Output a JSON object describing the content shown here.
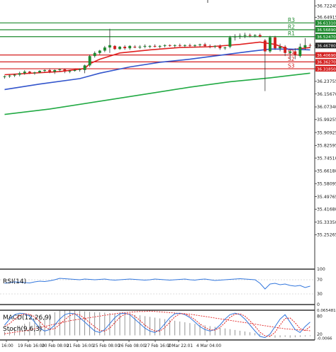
{
  "chart_data": [
    {
      "type": "candlestick",
      "panel": "price",
      "ylim": [
        35.2,
        36.76
      ],
      "y_ticks": [
        "36.72245",
        "36.64915",
        "36.56890",
        "36.52470",
        "36.46780",
        "36.40690",
        "36.36270",
        "36.31850",
        "36.23755",
        "36.15670",
        "36.07340",
        "35.99255",
        "35.90925",
        "35.82595",
        "35.74510",
        "35.66180",
        "35.58095",
        "35.49765",
        "35.41680",
        "35.33350",
        "35.25265"
      ],
      "price_label": "36.46780",
      "x_labels": [
        "16:00",
        "19 Feb 16:00",
        "20 Feb 08:00",
        "21 Feb 16:00",
        "25 Feb 08:00",
        "26 Feb 08:00",
        "27 Feb 16:00",
        "2 Mar 22:01",
        "4 Mar 04:00"
      ],
      "pivot_levels": [
        {
          "name": "R3",
          "value": 36.6131,
          "label": "36.61310"
        },
        {
          "name": "R2",
          "value": 36.5689,
          "label": "36.56890"
        },
        {
          "name": "R1",
          "value": 36.5247,
          "label": "36.52470"
        },
        {
          "name": "S1",
          "value": 36.4069,
          "label": "36.40690"
        },
        {
          "name": "S2",
          "value": 36.3627,
          "label": "36.36270"
        },
        {
          "name": "S3",
          "value": 36.3185,
          "label": "36.31850"
        }
      ],
      "candles": [
        [
          1,
          36.265,
          36.275,
          36.255,
          36.27
        ],
        [
          2,
          36.27,
          36.28,
          36.26,
          36.275
        ],
        [
          3,
          36.275,
          36.285,
          36.265,
          36.28
        ],
        [
          4,
          36.28,
          36.3,
          36.27,
          36.29
        ],
        [
          5,
          36.29,
          36.31,
          36.28,
          36.3
        ],
        [
          6,
          36.3,
          36.305,
          36.285,
          36.29
        ],
        [
          7,
          36.29,
          36.3,
          36.28,
          36.295
        ],
        [
          8,
          36.295,
          36.31,
          36.29,
          36.305
        ],
        [
          9,
          36.305,
          36.315,
          36.295,
          36.31
        ],
        [
          10,
          36.31,
          36.32,
          36.29,
          36.3
        ],
        [
          11,
          36.3,
          36.315,
          36.285,
          36.31
        ],
        [
          12,
          36.31,
          36.32,
          36.3,
          36.315
        ],
        [
          13,
          36.315,
          36.32,
          36.29,
          36.3
        ],
        [
          14,
          36.3,
          36.31,
          36.29,
          36.305
        ],
        [
          15,
          36.305,
          36.315,
          36.3,
          36.31
        ],
        [
          16,
          36.31,
          36.32,
          36.3,
          36.315
        ],
        [
          17,
          36.31,
          36.345,
          36.29,
          36.34
        ],
        [
          18,
          36.34,
          36.41,
          36.33,
          36.4
        ],
        [
          19,
          36.4,
          36.43,
          36.39,
          36.42
        ],
        [
          20,
          36.42,
          36.44,
          36.41,
          36.435
        ],
        [
          21,
          36.435,
          36.465,
          36.425,
          36.455
        ],
        [
          22,
          36.455,
          36.575,
          36.42,
          36.47
        ],
        [
          23,
          36.465,
          36.47,
          36.44,
          36.445
        ],
        [
          24,
          36.445,
          36.465,
          36.44,
          36.46
        ],
        [
          25,
          36.46,
          36.47,
          36.44,
          36.45
        ],
        [
          26,
          36.45,
          36.47,
          36.44,
          36.465
        ],
        [
          27,
          36.46,
          36.47,
          36.45,
          36.455
        ],
        [
          28,
          36.455,
          36.47,
          36.445,
          36.46
        ],
        [
          29,
          36.46,
          36.475,
          36.45,
          36.465
        ],
        [
          30,
          36.46,
          36.47,
          36.45,
          36.465
        ],
        [
          31,
          36.465,
          36.475,
          36.455,
          36.46
        ],
        [
          32,
          36.46,
          36.47,
          36.45,
          36.465
        ],
        [
          33,
          36.465,
          36.475,
          36.455,
          36.47
        ],
        [
          34,
          36.47,
          36.475,
          36.46,
          36.465
        ],
        [
          35,
          36.465,
          36.475,
          36.455,
          36.47
        ],
        [
          36,
          36.47,
          36.48,
          36.46,
          36.465
        ],
        [
          37,
          36.465,
          36.475,
          36.455,
          36.47
        ],
        [
          38,
          36.47,
          36.48,
          36.46,
          36.465
        ],
        [
          39,
          36.465,
          36.475,
          36.455,
          36.47
        ],
        [
          40,
          36.47,
          36.48,
          36.46,
          36.475
        ],
        [
          41,
          36.475,
          36.485,
          36.46,
          36.465
        ],
        [
          42,
          36.465,
          36.475,
          36.45,
          36.46
        ],
        [
          43,
          36.46,
          36.47,
          36.45,
          36.465
        ],
        [
          44,
          36.465,
          36.475,
          36.44,
          36.45
        ],
        [
          45,
          36.45,
          36.46,
          36.44,
          36.455
        ],
        [
          46,
          36.46,
          36.53,
          36.45,
          36.52
        ],
        [
          47,
          36.52,
          36.54,
          36.5,
          36.525
        ],
        [
          48,
          36.525,
          36.545,
          36.51,
          36.53
        ],
        [
          49,
          36.53,
          36.55,
          36.515,
          36.535
        ],
        [
          50,
          36.535,
          36.545,
          36.52,
          36.53
        ],
        [
          51,
          36.53,
          36.54,
          36.52,
          36.535
        ],
        [
          52,
          36.535,
          36.545,
          36.52,
          36.525
        ],
        [
          53,
          36.5,
          36.51,
          36.175,
          36.43
        ],
        [
          54,
          36.43,
          36.53,
          36.42,
          36.52
        ],
        [
          55,
          36.52,
          36.53,
          36.44,
          36.45
        ],
        [
          56,
          36.45,
          36.48,
          36.43,
          36.46
        ],
        [
          57,
          36.46,
          36.47,
          36.4,
          36.42
        ],
        [
          58,
          36.42,
          36.44,
          36.38,
          36.43
        ],
        [
          59,
          36.43,
          36.45,
          36.38,
          36.41
        ],
        [
          60,
          36.4,
          36.48,
          36.39,
          36.46
        ],
        [
          61,
          36.455,
          36.515,
          36.44,
          36.47
        ],
        [
          62,
          36.47,
          36.48,
          36.45,
          36.4678
        ]
      ],
      "series": [
        {
          "name": "",
          "color": "#e02020",
          "points": [
            [
              1,
              36.28
            ],
            [
              12,
              36.3
            ],
            [
              17,
              36.32
            ],
            [
              18,
              36.35
            ],
            [
              20,
              36.38
            ],
            [
              24,
              36.42
            ],
            [
              30,
              36.44
            ],
            [
              36,
              36.455
            ],
            [
              42,
              36.46
            ],
            [
              48,
              36.475
            ],
            [
              52,
              36.49
            ],
            [
              55,
              36.475
            ],
            [
              58,
              36.44
            ],
            [
              62,
              36.455
            ]
          ]
        },
        {
          "name": "",
          "color": "#3355cc",
          "points": [
            [
              1,
              36.185
            ],
            [
              8,
              36.22
            ],
            [
              16,
              36.255
            ],
            [
              20,
              36.29
            ],
            [
              26,
              36.33
            ],
            [
              32,
              36.36
            ],
            [
              38,
              36.38
            ],
            [
              44,
              36.405
            ],
            [
              50,
              36.43
            ],
            [
              54,
              36.445
            ],
            [
              58,
              36.445
            ],
            [
              62,
              36.44
            ]
          ]
        },
        {
          "name": "",
          "color": "#22aa44",
          "points": [
            [
              1,
              36.025
            ],
            [
              10,
              36.06
            ],
            [
              20,
              36.11
            ],
            [
              30,
              36.16
            ],
            [
              38,
              36.2
            ],
            [
              46,
              36.235
            ],
            [
              54,
              36.26
            ],
            [
              58,
              36.275
            ],
            [
              62,
              36.29
            ]
          ]
        }
      ]
    },
    {
      "type": "line",
      "panel": "indicator",
      "title": "RSI(14)",
      "ylim": [
        0,
        100
      ],
      "y_ticks": [
        "100",
        "70",
        "30",
        "0"
      ],
      "series": [
        {
          "name": "",
          "color": "#3377dd",
          "values": [
            60,
            62,
            64,
            63,
            62,
            61,
            64,
            66,
            65,
            67,
            70,
            74,
            73,
            72,
            71,
            70,
            72,
            71,
            70,
            71,
            72,
            70,
            69,
            70,
            71,
            72,
            71,
            70,
            69,
            70,
            72,
            71,
            70,
            69,
            70,
            71,
            72,
            70,
            69,
            71,
            72,
            70,
            68,
            69,
            70,
            71,
            72,
            73,
            72,
            71,
            70,
            60,
            44,
            58,
            60,
            56,
            58,
            54,
            52,
            54,
            48,
            52
          ]
        }
      ]
    },
    {
      "type": "line",
      "panel": "indicator",
      "title": "MACD(12,26,9)",
      "ylim": [
        -0.012,
        0.08
      ],
      "y_ticks": [
        "0.065481",
        "-0.0066"
      ],
      "series": [
        {
          "name": "",
          "color": "#e02020",
          "values": [
            0.004,
            0.006,
            0.008,
            0.01,
            0.012,
            0.014,
            0.017,
            0.02,
            0.023,
            0.026,
            0.029,
            0.032,
            0.035,
            0.038,
            0.04,
            0.042,
            0.044,
            0.046,
            0.048,
            0.05,
            0.052,
            0.054,
            0.056,
            0.058,
            0.059,
            0.06,
            0.061,
            0.062,
            0.062,
            0.063,
            0.062,
            0.061,
            0.06,
            0.059,
            0.058,
            0.057,
            0.056,
            0.055,
            0.053,
            0.051,
            0.049,
            0.047,
            0.045,
            0.043,
            0.041,
            0.039,
            0.037,
            0.035,
            0.033,
            0.031,
            0.029,
            0.027,
            0.025,
            0.023,
            0.021,
            0.019,
            0.017,
            0.016,
            0.015,
            0.014,
            0.013,
            0.012
          ]
        }
      ],
      "histogram": [
        0.01,
        0.015,
        0.02,
        0.025,
        0.03,
        0.035,
        0.04,
        0.045,
        0.05,
        0.055,
        0.06,
        0.064,
        0.065,
        0.065,
        0.064,
        0.063,
        0.062,
        0.061,
        0.06,
        0.06,
        0.059,
        0.058,
        0.057,
        0.056,
        0.055,
        0.054,
        0.053,
        0.052,
        0.05,
        0.048,
        0.046,
        0.044,
        0.042,
        0.04,
        0.038,
        0.036,
        0.034,
        0.032,
        0.03,
        0.028,
        0.026,
        0.024,
        0.022,
        0.02,
        0.018,
        0.016,
        0.014,
        0.012,
        0.01,
        0.008,
        0.006,
        0.004,
        0.0,
        -0.004,
        -0.006,
        -0.005,
        -0.004,
        -0.006,
        -0.005,
        -0.004,
        -0.003,
        -0.002
      ]
    },
    {
      "type": "line",
      "panel": "indicator",
      "title": "Stoch(9,6,3)",
      "ylim": [
        0,
        100
      ],
      "y_ticks": [
        "80",
        "20"
      ],
      "series": [
        {
          "name": "",
          "color": "#3377dd",
          "values": [
            50,
            70,
            85,
            90,
            88,
            80,
            60,
            40,
            30,
            35,
            50,
            70,
            85,
            90,
            88,
            75,
            60,
            45,
            30,
            25,
            35,
            55,
            75,
            88,
            90,
            85,
            70,
            55,
            40,
            30,
            25,
            35,
            55,
            75,
            88,
            90,
            85,
            75,
            60,
            45,
            35,
            30,
            35,
            50,
            70,
            85,
            90,
            85,
            70,
            50,
            30,
            12,
            8,
            20,
            45,
            70,
            85,
            60,
            35,
            25,
            45,
            60
          ]
        },
        {
          "name": "",
          "color": "#e02020",
          "values": [
            45,
            55,
            70,
            82,
            88,
            86,
            78,
            62,
            45,
            35,
            38,
            52,
            68,
            82,
            88,
            84,
            72,
            58,
            44,
            32,
            30,
            40,
            58,
            76,
            87,
            88,
            80,
            66,
            50,
            38,
            30,
            30,
            42,
            60,
            78,
            88,
            88,
            80,
            68,
            54,
            42,
            34,
            33,
            42,
            58,
            76,
            87,
            88,
            80,
            64,
            46,
            26,
            14,
            12,
            26,
            50,
            72,
            74,
            58,
            38,
            32,
            45
          ]
        }
      ]
    }
  ]
}
